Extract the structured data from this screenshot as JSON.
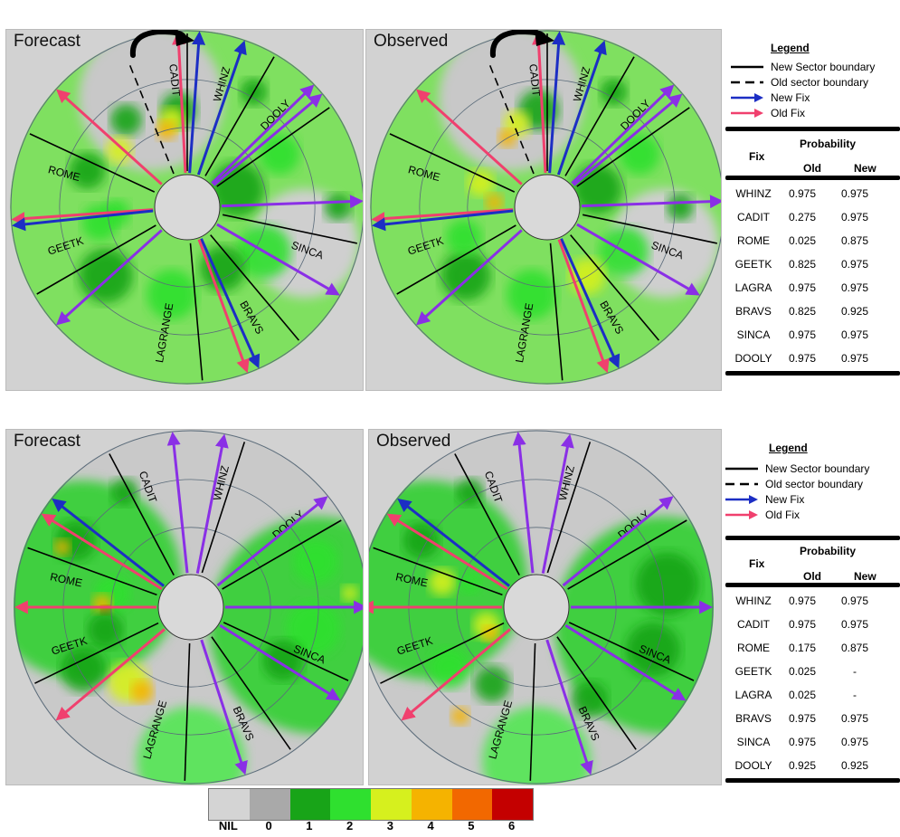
{
  "panels": [
    {
      "title": "Forecast",
      "scenario": "top"
    },
    {
      "title": "Observed",
      "scenario": "top"
    },
    {
      "title": "Forecast",
      "scenario": "bottom"
    },
    {
      "title": "Observed",
      "scenario": "bottom"
    }
  ],
  "sectors": [
    "CADIT",
    "WHINZ",
    "DOOLY",
    "SINCA",
    "BRAVS",
    "LAGRANGE",
    "GEETK",
    "ROME"
  ],
  "legend": {
    "title": "Legend",
    "new_sector_boundary": "New Sector boundary",
    "old_sector_boundary": "Old sector boundary",
    "new_fix": "New Fix",
    "old_fix": "Old Fix"
  },
  "table_headers": {
    "fix": "Fix",
    "probability": "Probability",
    "old": "Old",
    "new": "New"
  },
  "tables": {
    "top": [
      {
        "fix": "WHINZ",
        "old": "0.975",
        "new": "0.975"
      },
      {
        "fix": "CADIT",
        "old": "0.275",
        "new": "0.975"
      },
      {
        "fix": "ROME",
        "old": "0.025",
        "new": "0.875"
      },
      {
        "fix": "GEETK",
        "old": "0.825",
        "new": "0.975"
      },
      {
        "fix": "LAGRA",
        "old": "0.975",
        "new": "0.975"
      },
      {
        "fix": "BRAVS",
        "old": "0.825",
        "new": "0.925"
      },
      {
        "fix": "SINCA",
        "old": "0.975",
        "new": "0.975"
      },
      {
        "fix": "DOOLY",
        "old": "0.975",
        "new": "0.975"
      }
    ],
    "bottom": [
      {
        "fix": "WHINZ",
        "old": "0.975",
        "new": "0.975"
      },
      {
        "fix": "CADIT",
        "old": "0.975",
        "new": "0.975"
      },
      {
        "fix": "ROME",
        "old": "0.175",
        "new": "0.875"
      },
      {
        "fix": "GEETK",
        "old": "0.025",
        "new": "-"
      },
      {
        "fix": "LAGRA",
        "old": "0.025",
        "new": "-"
      },
      {
        "fix": "BRAVS",
        "old": "0.975",
        "new": "0.975"
      },
      {
        "fix": "SINCA",
        "old": "0.975",
        "new": "0.975"
      },
      {
        "fix": "DOOLY",
        "old": "0.925",
        "new": "0.925"
      }
    ]
  },
  "colorbar": {
    "labels": [
      "NIL",
      "0",
      "1",
      "2",
      "3",
      "4",
      "5",
      "6"
    ],
    "colors": [
      "#d4d4d4",
      "#a9a9a9",
      "#18a418",
      "#2fe02f",
      "#d6f01e",
      "#f5b300",
      "#f26800",
      "#c40000"
    ]
  },
  "colors": {
    "new_fix": "#1c2ec4",
    "old_fix": "#f0406e",
    "purple_fix": "#8a2fe6",
    "boundary": "#000000"
  }
}
